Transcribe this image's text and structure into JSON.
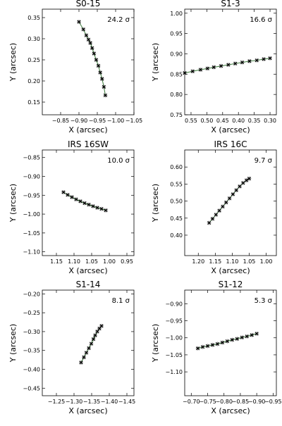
{
  "chart_data": [
    {
      "type": "scatter",
      "title": "S0-15",
      "annotation": "24.2 σ",
      "xlabel": "X (arcsec)",
      "ylabel": "Y (arcsec)",
      "xlim": [
        -0.8,
        -1.05
      ],
      "ylim": [
        0.12,
        0.37
      ],
      "xticks": [
        -0.85,
        -0.9,
        -0.95,
        -1.0,
        -1.05
      ],
      "xtick_labels": [
        "−0.85",
        "−0.90",
        "−0.95",
        "−1.00",
        "−1.05"
      ],
      "yticks": [
        0.15,
        0.2,
        0.25,
        0.3,
        0.35
      ],
      "ytick_labels": [
        "0.15",
        "0.20",
        "0.25",
        "0.30",
        "0.35"
      ],
      "series": [
        {
          "marker": "x",
          "fit_color": "#3a7a3a",
          "x": [
            -0.9,
            -0.912,
            -0.92,
            -0.926,
            -0.931,
            -0.936,
            -0.941,
            -0.947,
            -0.953,
            -0.958,
            -0.963,
            -0.968,
            -0.972
          ],
          "y": [
            0.34,
            0.322,
            0.308,
            0.298,
            0.29,
            0.278,
            0.265,
            0.25,
            0.236,
            0.22,
            0.205,
            0.186,
            0.166
          ]
        }
      ]
    },
    {
      "type": "scatter",
      "title": "S1-3",
      "annotation": "16.6 σ",
      "xlabel": "X (arcsec)",
      "ylabel": "Y (arcsec)",
      "xlim": [
        0.57,
        0.28
      ],
      "ylim": [
        0.75,
        1.01
      ],
      "xticks": [
        0.55,
        0.5,
        0.45,
        0.4,
        0.35,
        0.3
      ],
      "xtick_labels": [
        "0.55",
        "0.50",
        "0.45",
        "0.40",
        "0.35",
        "0.30"
      ],
      "yticks": [
        0.75,
        0.8,
        0.85,
        0.9,
        0.95,
        1.0
      ],
      "ytick_labels": [
        "0.75",
        "0.80",
        "0.85",
        "0.90",
        "0.95",
        "1.00"
      ],
      "series": [
        {
          "marker": "x",
          "fit_color": "#3a7a3a",
          "x": [
            0.57,
            0.545,
            0.52,
            0.498,
            0.478,
            0.455,
            0.432,
            0.41,
            0.388,
            0.365,
            0.342,
            0.32,
            0.3
          ],
          "y": [
            0.853,
            0.857,
            0.861,
            0.864,
            0.867,
            0.87,
            0.873,
            0.876,
            0.879,
            0.882,
            0.884,
            0.887,
            0.889
          ]
        }
      ]
    },
    {
      "type": "scatter",
      "title": "IRS 16SW",
      "annotation": "10.0 σ",
      "xlabel": "X (arcsec)",
      "ylabel": "Y (arcsec)",
      "xlim": [
        1.19,
        0.93
      ],
      "ylim": [
        -1.11,
        -0.83
      ],
      "xticks": [
        1.15,
        1.1,
        1.05,
        1.0,
        0.95
      ],
      "xtick_labels": [
        "1.15",
        "1.10",
        "1.05",
        "1.00",
        "0.95"
      ],
      "yticks": [
        -0.85,
        -0.9,
        -0.95,
        -1.0,
        -1.05,
        -1.1
      ],
      "ytick_labels": [
        "−0.85",
        "−0.90",
        "−0.95",
        "−1.00",
        "−1.05",
        "−1.10"
      ],
      "series": [
        {
          "marker": "x",
          "fit_color": "#3a7a3a",
          "x": [
            1.13,
            1.118,
            1.106,
            1.094,
            1.082,
            1.07,
            1.058,
            1.046,
            1.034,
            1.022,
            1.01
          ],
          "y": [
            -0.942,
            -0.949,
            -0.955,
            -0.961,
            -0.966,
            -0.971,
            -0.975,
            -0.979,
            -0.983,
            -0.986,
            -0.99
          ]
        }
      ]
    },
    {
      "type": "scatter",
      "title": "IRS 16C",
      "annotation": "9.7 σ",
      "xlabel": "X (arcsec)",
      "ylabel": "Y (arcsec)",
      "xlim": [
        1.24,
        0.97
      ],
      "ylim": [
        0.34,
        0.65
      ],
      "xticks": [
        1.2,
        1.15,
        1.1,
        1.05,
        1.0
      ],
      "xtick_labels": [
        "1.20",
        "1.15",
        "1.10",
        "1.05",
        "1.00"
      ],
      "yticks": [
        0.4,
        0.45,
        0.5,
        0.55,
        0.6
      ],
      "ytick_labels": [
        "0.40",
        "0.45",
        "0.50",
        "0.55",
        "0.60"
      ],
      "series": [
        {
          "marker": "x",
          "fit_color": "#3a7a3a",
          "x": [
            1.168,
            1.158,
            1.148,
            1.138,
            1.128,
            1.118,
            1.108,
            1.098,
            1.088,
            1.078,
            1.068,
            1.058,
            1.05
          ],
          "y": [
            0.436,
            0.448,
            0.46,
            0.472,
            0.484,
            0.496,
            0.508,
            0.52,
            0.532,
            0.543,
            0.553,
            0.561,
            0.566
          ]
        }
      ]
    },
    {
      "type": "scatter",
      "title": "S1-14",
      "annotation": "8.1 σ",
      "xlabel": "X (arcsec)",
      "ylabel": "Y (arcsec)",
      "xlim": [
        -1.21,
        -1.47
      ],
      "ylim": [
        -0.47,
        -0.19
      ],
      "xticks": [
        -1.25,
        -1.3,
        -1.35,
        -1.4,
        -1.45
      ],
      "xtick_labels": [
        "−1.25",
        "−1.30",
        "−1.35",
        "−1.40",
        "−1.45"
      ],
      "yticks": [
        -0.2,
        -0.25,
        -0.3,
        -0.35,
        -0.4,
        -0.45
      ],
      "ytick_labels": [
        "−0.20",
        "−0.25",
        "−0.30",
        "−0.35",
        "−0.40",
        "−0.45"
      ],
      "series": [
        {
          "marker": "x",
          "fit_color": "#3a7a3a",
          "x": [
            -1.32,
            -1.328,
            -1.335,
            -1.342,
            -1.349,
            -1.355,
            -1.36,
            -1.366,
            -1.372,
            -1.378
          ],
          "y": [
            -0.382,
            -0.368,
            -0.356,
            -0.344,
            -0.332,
            -0.32,
            -0.31,
            -0.3,
            -0.292,
            -0.285
          ]
        }
      ]
    },
    {
      "type": "scatter",
      "title": "S1-12",
      "annotation": "5.3 σ",
      "xlabel": "X (arcsec)",
      "ylabel": "Y (arcsec)",
      "xlim": [
        -0.68,
        -0.96
      ],
      "ylim": [
        -1.17,
        -0.86
      ],
      "xticks": [
        -0.7,
        -0.75,
        -0.8,
        -0.85,
        -0.9,
        -0.95
      ],
      "xtick_labels": [
        "−0.70",
        "−0.75",
        "−0.80",
        "−0.85",
        "−0.90",
        "−0.95"
      ],
      "yticks": [
        -0.9,
        -0.95,
        -1.0,
        -1.05,
        -1.1
      ],
      "ytick_labels": [
        "−0.90",
        "−0.95",
        "−1.00",
        "−1.05",
        "−1.10"
      ],
      "series": [
        {
          "marker": "x",
          "fit_color": "#3a7a3a",
          "x": [
            -0.72,
            -0.735,
            -0.75,
            -0.765,
            -0.78,
            -0.795,
            -0.81,
            -0.825,
            -0.84,
            -0.855,
            -0.87,
            -0.885,
            -0.9
          ],
          "y": [
            -1.031,
            -1.027,
            -1.024,
            -1.021,
            -1.018,
            -1.014,
            -1.01,
            -1.006,
            -1.003,
            -0.999,
            -0.996,
            -0.992,
            -0.988
          ]
        }
      ]
    }
  ]
}
